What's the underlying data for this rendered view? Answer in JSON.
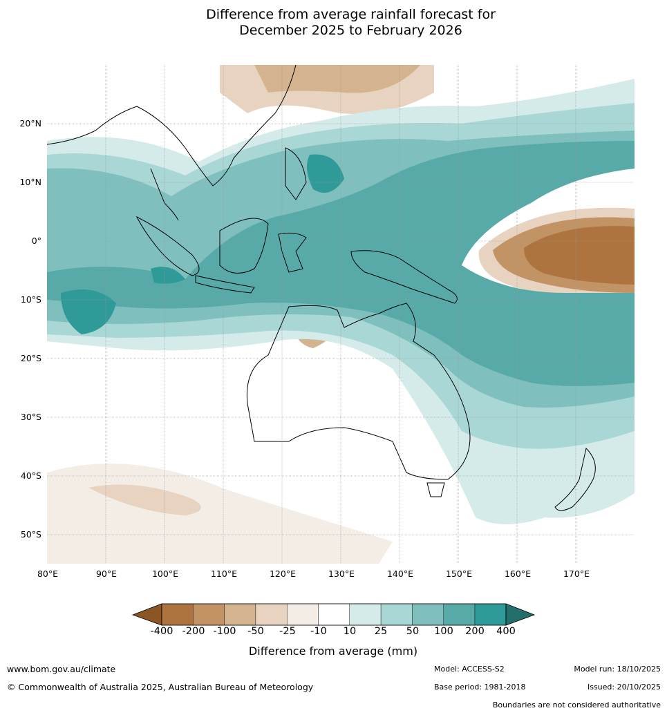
{
  "title": {
    "line1": "Difference from average rainfall forecast for",
    "line2": "December 2025 to February 2026"
  },
  "map": {
    "latitude_labels": [
      "20°N",
      "10°N",
      "0°",
      "10°S",
      "20°S",
      "30°S",
      "40°S",
      "50°S"
    ],
    "longitude_labels": [
      "80°E",
      "90°E",
      "100°E",
      "110°E",
      "120°E",
      "130°E",
      "140°E",
      "150°E",
      "160°E",
      "170°E"
    ]
  },
  "colorbar": {
    "ticks": [
      "-400",
      "-200",
      "-100",
      "-50",
      "-25",
      "-10",
      "10",
      "25",
      "50",
      "100",
      "200",
      "400"
    ],
    "colors": [
      "#8b5524",
      "#ad7440",
      "#c19365",
      "#d4b38f",
      "#e7d3bf",
      "#f3ede6",
      "#ffffff",
      "#d5ebe9",
      "#a9d7d5",
      "#7fc0bf",
      "#58aaa8",
      "#2f9a97",
      "#236f6c"
    ],
    "title": "Difference from average (mm)"
  },
  "footer": {
    "url": "www.bom.gov.au/climate",
    "copyright": "© Commonwealth of Australia 2025, Australian Bureau of Meteorology",
    "model": "Model: ACCESS-S2",
    "base_period": "Base period: 1981-2018",
    "model_run": "Model run: 18/10/2025",
    "issued": "Issued: 20/10/2025",
    "boundaries_note": "Boundaries are not considered authoritative"
  }
}
